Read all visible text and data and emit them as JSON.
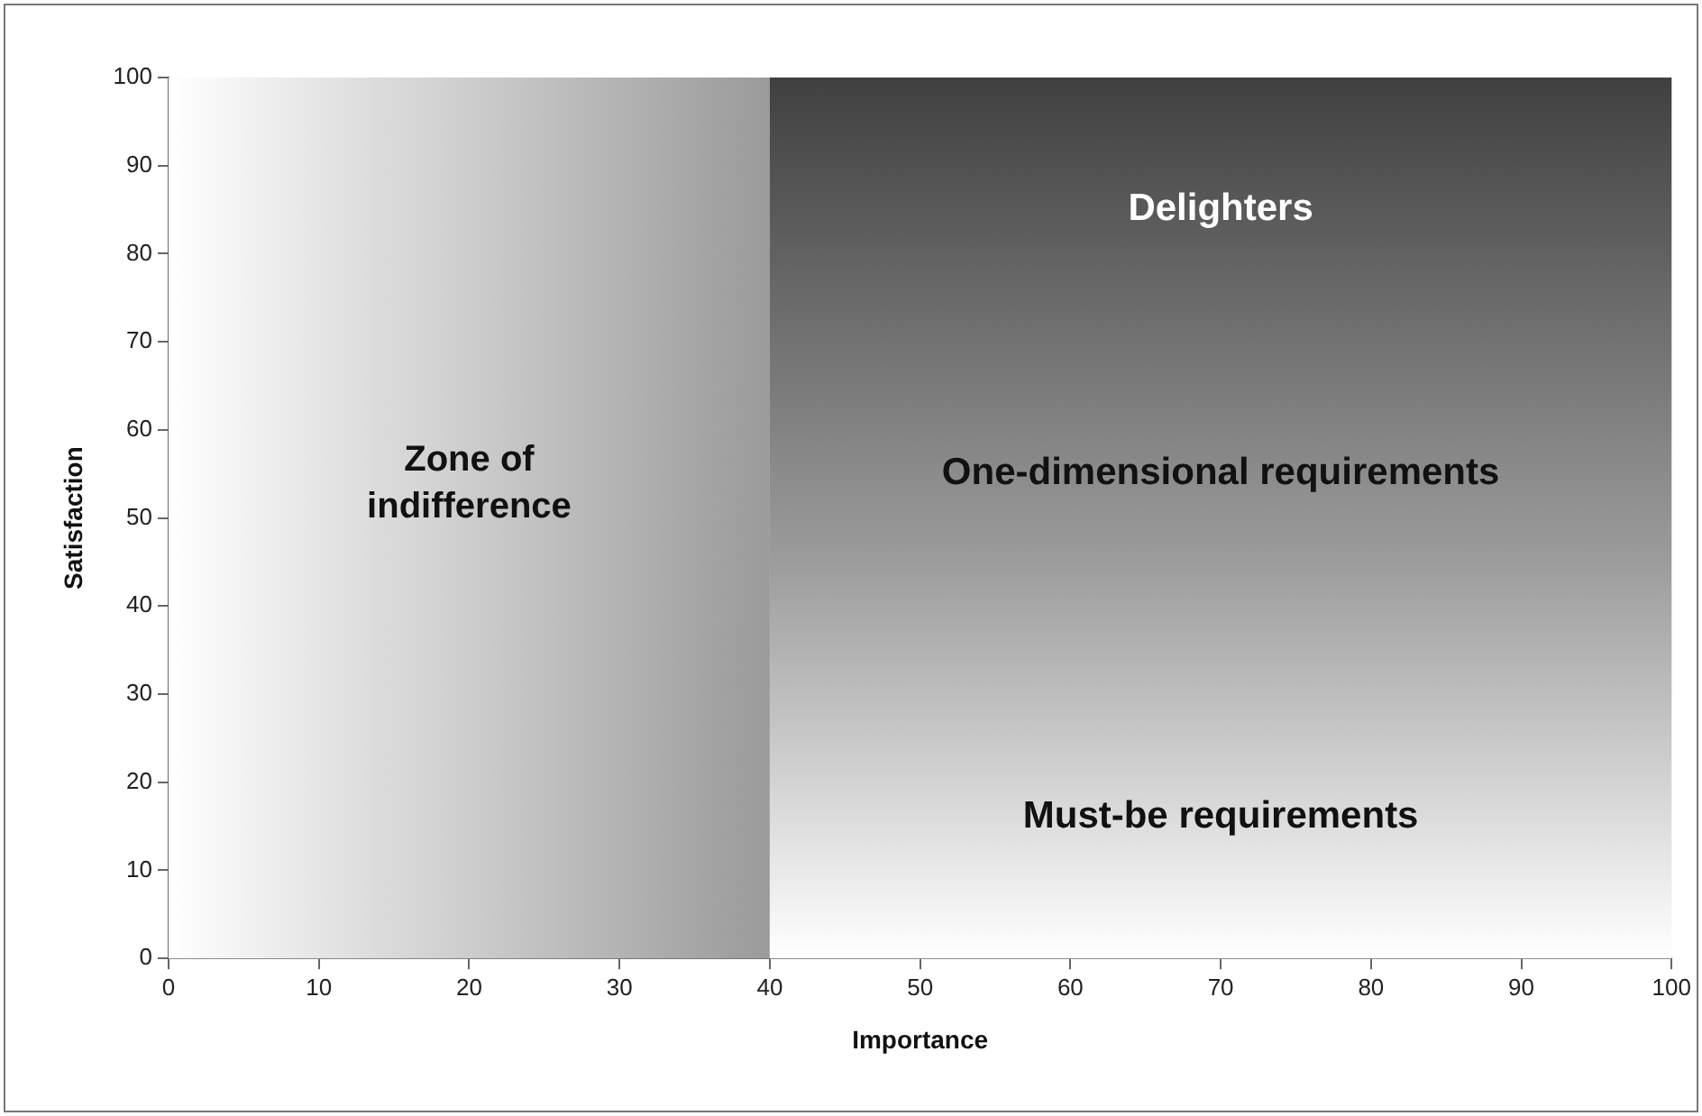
{
  "chart_data": {
    "type": "scatter",
    "xlabel": "Importance",
    "ylabel": "Satisfaction",
    "xlim": [
      0,
      100
    ],
    "xticks": [
      0,
      10,
      20,
      30,
      40,
      50,
      60,
      70,
      80,
      90,
      100
    ],
    "ylim": [
      0,
      100
    ],
    "yticks": [
      0,
      10,
      20,
      30,
      40,
      50,
      60,
      70,
      80,
      90,
      100
    ],
    "bands": [
      {
        "axis": "x",
        "from": 0,
        "to": 40,
        "label": "Zone of indifference",
        "color": "#9a9a9a"
      },
      {
        "axis": "x",
        "from": 40,
        "to": 100,
        "color": "#404040"
      }
    ],
    "annotations": [
      "Delighters",
      "One-dimensional requirements",
      "Must-be requirements"
    ]
  }
}
